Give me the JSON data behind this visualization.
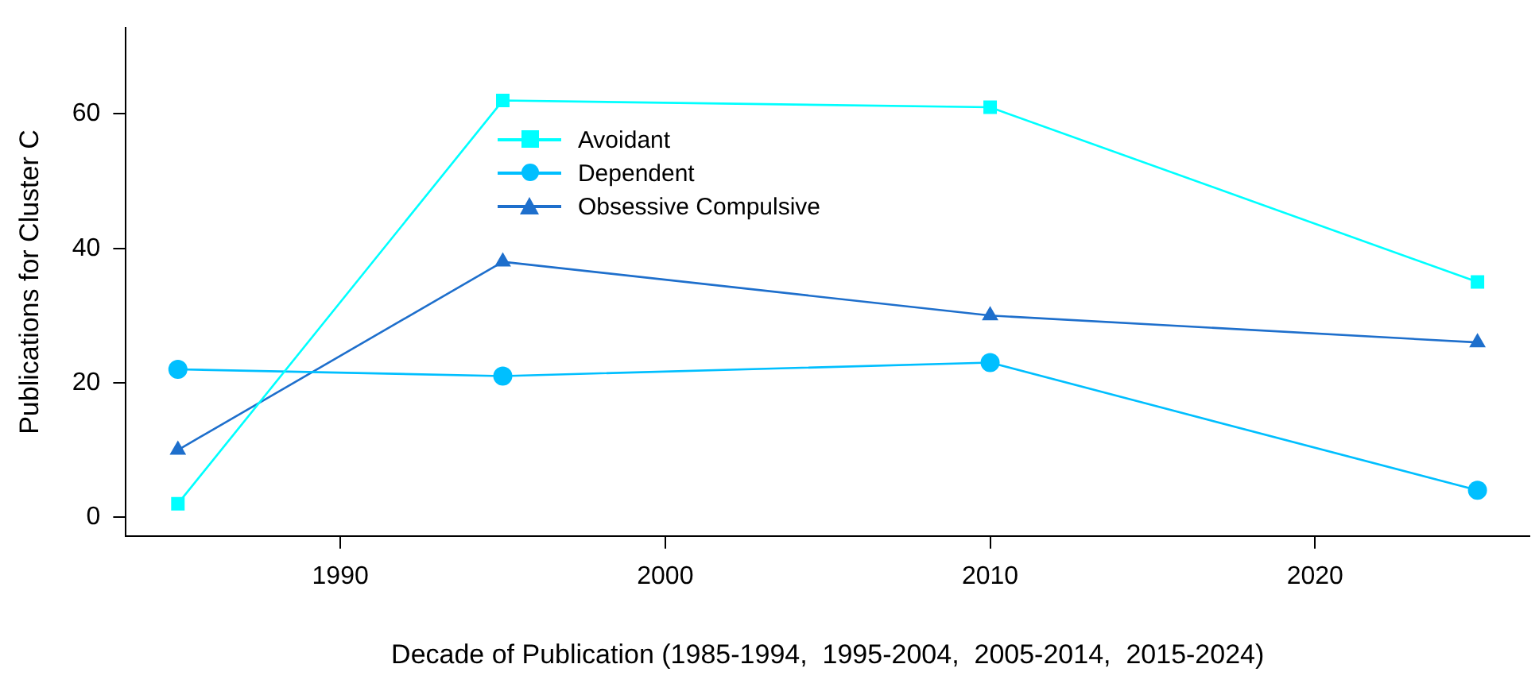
{
  "chart_data": {
    "type": "line",
    "xlabel": "Decade of Publication (1985-1994,  1995-2004,  2005-2014,  2015-2024)",
    "ylabel": "Publications for Cluster C",
    "x": [
      1985,
      1995,
      2010,
      2025
    ],
    "series": [
      {
        "name": "Avoidant",
        "color": "#00ffff",
        "marker": "square",
        "values": [
          2,
          62,
          61,
          35
        ]
      },
      {
        "name": "Dependent",
        "color": "#00bfff",
        "marker": "circle",
        "values": [
          22,
          21,
          23,
          4
        ]
      },
      {
        "name": "Obsessive Compulsive",
        "color": "#1e6fcc",
        "marker": "triangle",
        "values": [
          10,
          38,
          30,
          26
        ]
      }
    ],
    "xlim": [
      1983.4,
      2026.6
    ],
    "xticks": [
      1990,
      2000,
      2010,
      2020
    ],
    "ylim": [
      -2.8,
      72.8
    ],
    "yticks": [
      0,
      20,
      40,
      60
    ],
    "grid": false,
    "legend": "center",
    "line_style": "solid"
  }
}
